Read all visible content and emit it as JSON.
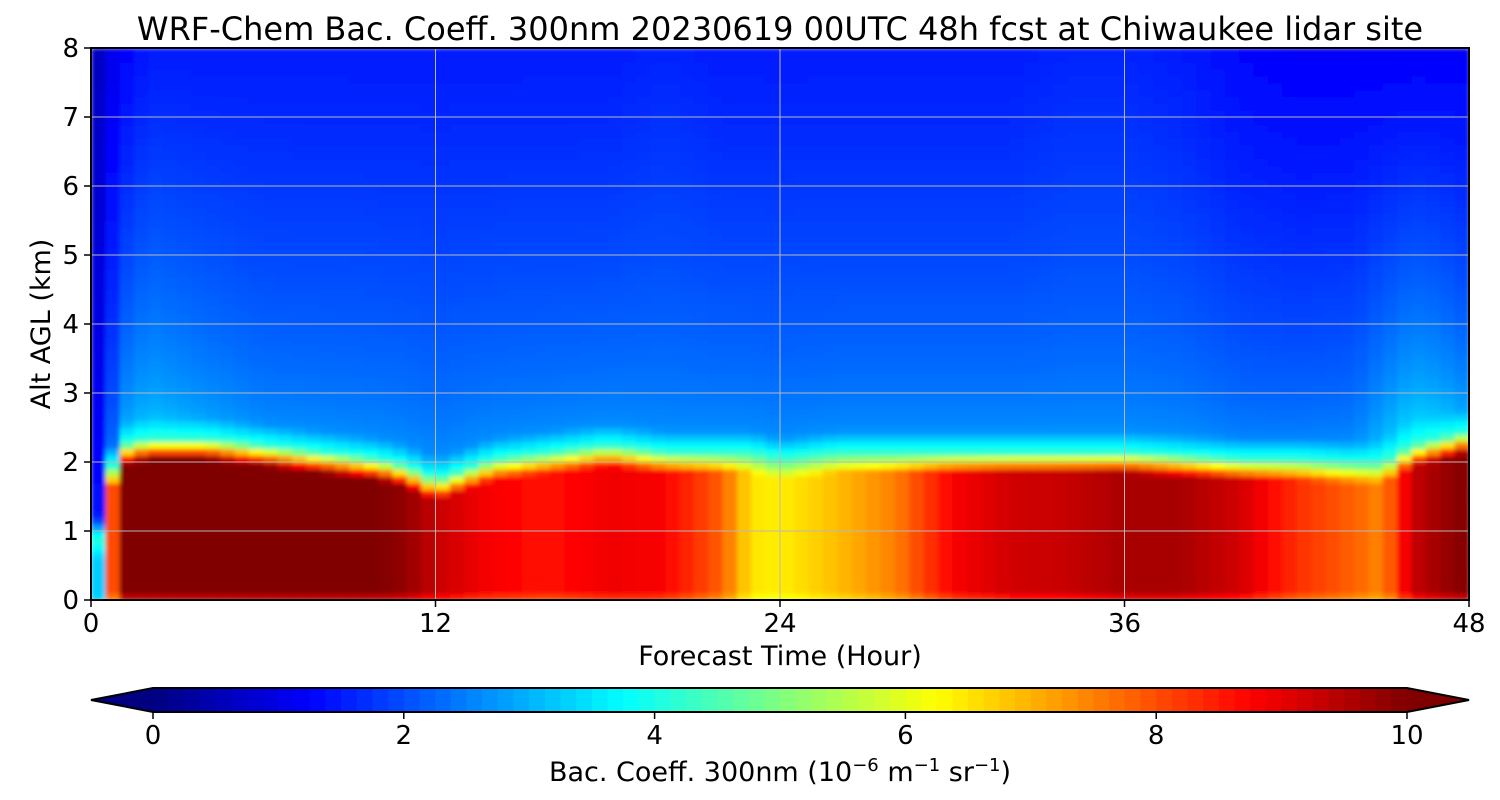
{
  "chart_data": {
    "type": "heatmap",
    "title": "WRF-Chem Bac. Coeff. 300nm  20230619 00UTC 48h fcst at Chiwaukee lidar site",
    "xlabel": "Forecast Time (Hour)",
    "ylabel": "Alt AGL (km)",
    "xlim": [
      0,
      48
    ],
    "ylim": [
      0,
      8
    ],
    "xticks": [
      0,
      12,
      24,
      36,
      48
    ],
    "xtick_labels": [
      "0",
      "12",
      "24",
      "36",
      "48"
    ],
    "yticks": [
      0,
      1,
      2,
      3,
      4,
      5,
      6,
      7,
      8
    ],
    "ytick_labels": [
      "0",
      "1",
      "2",
      "3",
      "4",
      "5",
      "6",
      "7",
      "8"
    ],
    "grid": true,
    "colormap": "jet",
    "colorbar": {
      "label_main": "Bac. Coeff. 300nm  (10",
      "label_exp1": "−6",
      "label_mid": " m",
      "label_exp2": "−1",
      "label_mid2": " sr",
      "label_exp3": "−1",
      "label_end": ")",
      "vmin": 0,
      "vmax": 10,
      "ticks": [
        0,
        2,
        4,
        6,
        8,
        10
      ],
      "tick_labels": [
        "0",
        "2",
        "4",
        "6",
        "8",
        "10"
      ],
      "extend": "both",
      "orientation": "horizontal"
    },
    "x": [
      0,
      0.5,
      1,
      2,
      4,
      6,
      8,
      10,
      11,
      12,
      14,
      16,
      18,
      20,
      22,
      23,
      24,
      26,
      28,
      30,
      32,
      34,
      36,
      38,
      40,
      42,
      44,
      45,
      46,
      47,
      48
    ],
    "z_heights": [
      0.0,
      0.1,
      0.3,
      0.5,
      0.7,
      1.0,
      1.3,
      1.5,
      1.7,
      1.9,
      2.05,
      2.2,
      2.35,
      2.5,
      2.7,
      3.0,
      3.5,
      4.0,
      5.0,
      6.0,
      7.0,
      8.0
    ],
    "boundary_layer_top_km": [
      0.0,
      1.5,
      2.1,
      2.2,
      2.2,
      2.1,
      2.0,
      1.9,
      1.8,
      1.6,
      1.9,
      2.0,
      2.1,
      2.0,
      2.0,
      2.0,
      1.9,
      2.0,
      2.0,
      2.0,
      2.0,
      2.0,
      2.0,
      1.95,
      1.9,
      1.9,
      1.85,
      1.85,
      2.1,
      2.2,
      2.3
    ],
    "bl_value": [
      0.5,
      6.0,
      10.0,
      10.0,
      10.0,
      10.0,
      10.0,
      10.0,
      9.8,
      9.3,
      8.8,
      8.6,
      8.9,
      8.8,
      7.8,
      6.5,
      6.4,
      6.9,
      7.5,
      8.8,
      9.2,
      9.3,
      9.6,
      9.6,
      9.2,
      8.3,
      7.8,
      7.4,
      9.3,
      9.7,
      10.0
    ],
    "free_trop_value": [
      0.3,
      0.9,
      2.0,
      2.3,
      2.0,
      1.8,
      1.8,
      1.8,
      1.8,
      1.8,
      1.8,
      1.8,
      1.8,
      1.8,
      1.8,
      1.8,
      1.8,
      1.8,
      1.8,
      1.8,
      1.8,
      1.8,
      1.8,
      1.8,
      1.7,
      1.7,
      1.8,
      2.3,
      2.6,
      2.4,
      2.0
    ],
    "top_value": [
      0.4,
      0.9,
      1.2,
      1.5,
      1.5,
      1.5,
      1.5,
      1.5,
      1.5,
      1.5,
      1.5,
      1.5,
      1.5,
      1.6,
      1.5,
      1.5,
      1.5,
      1.5,
      1.5,
      1.5,
      1.5,
      1.6,
      1.6,
      1.5,
      1.3,
      1.2,
      1.2,
      1.2,
      1.2,
      1.2,
      1.2
    ]
  }
}
